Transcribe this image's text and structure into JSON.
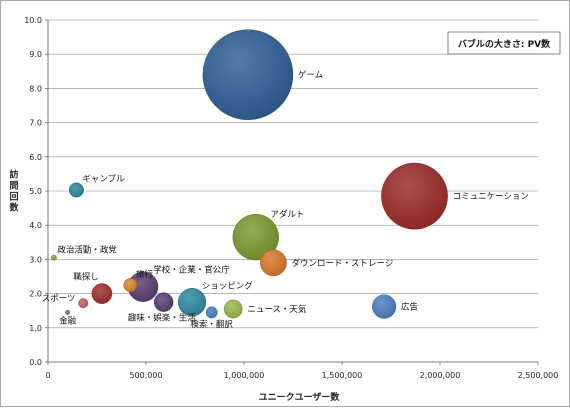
{
  "chart_data": {
    "type": "bubble",
    "xlabel": "ユニークユーザー数",
    "ylabel": "訪問回数",
    "size_legend": "バブルの大きさ: PV数",
    "xlim": [
      0,
      2500000
    ],
    "ylim": [
      0,
      10
    ],
    "x_ticks": [
      "0",
      "500,000",
      "1,000,000",
      "1,500,000",
      "2,000,000",
      "2,500,000"
    ],
    "x_tick_values": [
      0,
      500000,
      1000000,
      1500000,
      2000000,
      2500000
    ],
    "y_ticks": [
      "0.0",
      "1.0",
      "2.0",
      "3.0",
      "4.0",
      "5.0",
      "6.0",
      "7.0",
      "8.0",
      "9.0",
      "10.0"
    ],
    "y_tick_values": [
      0,
      1,
      2,
      3,
      4,
      5,
      6,
      7,
      8,
      9,
      10
    ],
    "grid": "horizontal",
    "points": [
      {
        "label": "ゲーム",
        "x": 1020000,
        "y": 8.4,
        "size": 100,
        "color": "#2e5f96",
        "label_pos": "right"
      },
      {
        "label": "コミュニケーション",
        "x": 1870000,
        "y": 4.85,
        "size": 54,
        "color": "#9c2a2a",
        "label_pos": "right"
      },
      {
        "label": "アダルト",
        "x": 1060000,
        "y": 3.65,
        "size": 26,
        "color": "#7a9a2e",
        "label_pos": "above-right"
      },
      {
        "label": "ダウンロード・ストレージ",
        "x": 1150000,
        "y": 2.9,
        "size": 8.5,
        "color": "#d9772a",
        "label_pos": "right"
      },
      {
        "label": "ギャンブル",
        "x": 145000,
        "y": 5.03,
        "size": 2.6,
        "color": "#2f8aa0",
        "label_pos": "above-right"
      },
      {
        "label": "政治活動・政党",
        "x": 30000,
        "y": 3.05,
        "size": 0.35,
        "color": "#8ca63e",
        "label_pos": "above-right"
      },
      {
        "label": "職探し",
        "x": 275000,
        "y": 2.0,
        "size": 5.0,
        "color": "#a03030",
        "label_pos": "above-left"
      },
      {
        "label": "旅行",
        "x": 420000,
        "y": 2.25,
        "size": 2.2,
        "color": "#d9862a",
        "label_pos": "above-right"
      },
      {
        "label": "学校・企業・官公庁",
        "x": 485000,
        "y": 2.2,
        "size": 11,
        "color": "#5b3e73",
        "label_pos": "above-right"
      },
      {
        "label": "趣味・娯楽・生活",
        "x": 590000,
        "y": 1.75,
        "size": 4.4,
        "color": "#5b3e73",
        "label_pos": "below-left"
      },
      {
        "label": "ショッピング",
        "x": 735000,
        "y": 1.75,
        "size": 9.5,
        "color": "#2f8aa0",
        "label_pos": "above-right"
      },
      {
        "label": "検索・翻訳",
        "x": 835000,
        "y": 1.45,
        "size": 1.6,
        "color": "#4a7fc0",
        "label_pos": "below"
      },
      {
        "label": "ニュース・天気",
        "x": 945000,
        "y": 1.55,
        "size": 4.1,
        "color": "#98b84a",
        "label_pos": "right"
      },
      {
        "label": "広告",
        "x": 1715000,
        "y": 1.62,
        "size": 6.9,
        "color": "#4a7fc0",
        "label_pos": "right"
      },
      {
        "label": "スポーツ",
        "x": 180000,
        "y": 1.72,
        "size": 1.1,
        "color": "#c86060",
        "label_pos": "left"
      },
      {
        "label": "金融",
        "x": 100000,
        "y": 1.45,
        "size": 0.25,
        "color": "#7a7a7a",
        "label_pos": "below"
      }
    ]
  }
}
